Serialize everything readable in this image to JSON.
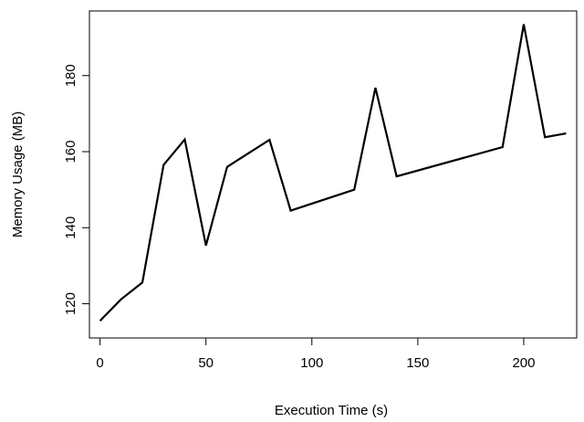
{
  "chart_data": {
    "type": "line",
    "title": "",
    "xlabel": "Execution Time (s)",
    "ylabel": "Memory Usage (MB)",
    "xlim": [
      -5,
      225
    ],
    "ylim": [
      111,
      197
    ],
    "x_ticks": [
      0,
      50,
      100,
      150,
      200
    ],
    "y_ticks": [
      120,
      140,
      160,
      180
    ],
    "grid": false,
    "legend": "none",
    "line_color": "#000000",
    "series": [
      {
        "x": [
          0,
          10,
          20,
          30,
          40,
          50,
          60,
          80,
          90,
          120,
          130,
          140,
          190,
          200,
          210,
          220
        ],
        "values": [
          115.5,
          121.2,
          125.6,
          156.5,
          163.2,
          135.3,
          156.0,
          163.1,
          144.5,
          150.0,
          176.8,
          153.5,
          161.2,
          193.5,
          163.8,
          164.8
        ]
      }
    ]
  }
}
